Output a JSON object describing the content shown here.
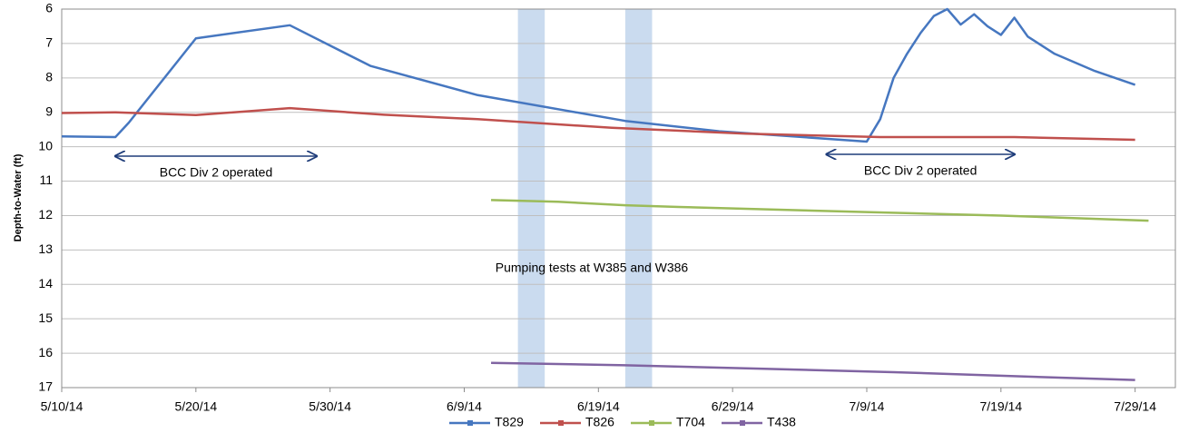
{
  "chart_data": {
    "type": "line",
    "y_label": "Depth-to-Water (ft)",
    "ylim": [
      6,
      17
    ],
    "y_inverted": true,
    "yticks": [
      6,
      7,
      8,
      9,
      10,
      11,
      12,
      13,
      14,
      15,
      16,
      17
    ],
    "xlim": [
      "5/10/14",
      "8/1/14"
    ],
    "xticks": [
      "5/10/14",
      "5/20/14",
      "5/30/14",
      "6/9/14",
      "6/19/14",
      "6/29/14",
      "7/9/14",
      "7/19/14",
      "7/29/14"
    ],
    "grid": true,
    "legend": "bottom",
    "series": [
      {
        "name": "T829",
        "color": "#4677c0",
        "x": [
          "5/10/14",
          "5/14/14",
          "5/15/14",
          "5/20/14",
          "5/27/14",
          "6/2/14",
          "6/10/14",
          "6/21/14",
          "6/28/14",
          "7/9/14",
          "7/10/14",
          "7/11/14",
          "7/12/14",
          "7/13/14",
          "7/14/14",
          "7/15/14",
          "7/16/14",
          "7/17/14",
          "7/18/14",
          "7/19/14",
          "7/20/14",
          "7/21/14",
          "7/23/14",
          "7/26/14",
          "7/29/14"
        ],
        "values": [
          9.7,
          9.72,
          9.3,
          6.85,
          6.47,
          7.65,
          8.5,
          9.25,
          9.55,
          9.85,
          9.2,
          8.0,
          7.3,
          6.7,
          6.2,
          6.0,
          6.45,
          6.15,
          6.5,
          6.75,
          6.25,
          6.8,
          7.3,
          7.8,
          8.2
        ]
      },
      {
        "name": "T826",
        "color": "#c0504d",
        "x": [
          "5/10/14",
          "5/14/14",
          "5/20/14",
          "5/27/14",
          "6/3/14",
          "6/10/14",
          "6/20/14",
          "6/30/14",
          "7/10/14",
          "7/20/14",
          "7/29/14"
        ],
        "values": [
          9.02,
          9.0,
          9.08,
          8.88,
          9.07,
          9.2,
          9.45,
          9.62,
          9.72,
          9.72,
          9.8
        ]
      },
      {
        "name": "T704",
        "color": "#9bbb59",
        "x": [
          "6/11/14",
          "6/16/14",
          "6/21/14",
          "6/25/14",
          "7/9/14",
          "7/19/14",
          "7/30/14"
        ],
        "values": [
          11.55,
          11.6,
          11.7,
          11.75,
          11.9,
          12.0,
          12.15
        ]
      },
      {
        "name": "T438",
        "color": "#8064a2",
        "x": [
          "6/11/14",
          "6/21/14",
          "7/1/14",
          "7/11/14",
          "7/21/14",
          "7/29/14"
        ],
        "values": [
          16.28,
          16.35,
          16.45,
          16.55,
          16.68,
          16.78
        ]
      }
    ],
    "bands": [
      {
        "start": "6/13/14",
        "end": "6/15/14"
      },
      {
        "start": "6/21/14",
        "end": "6/23/14"
      }
    ],
    "band_label": "Pumping tests at W385 and W386",
    "ranges": [
      {
        "text": "BCC Div 2 operated",
        "start": "5/14/14",
        "end": "5/29/14"
      },
      {
        "text": "BCC Div 2 operated",
        "start": "7/6/14",
        "end": "7/20/14"
      }
    ]
  }
}
